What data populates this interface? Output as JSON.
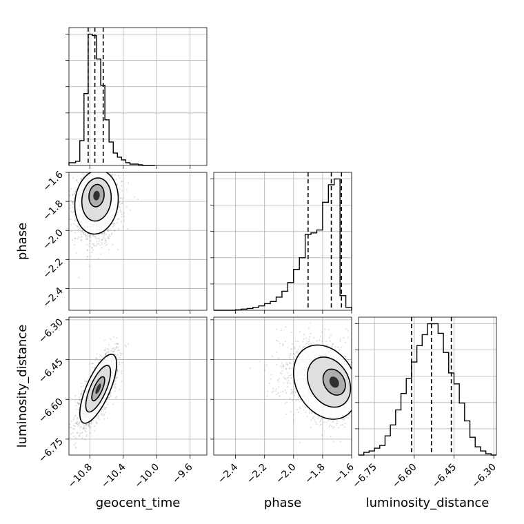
{
  "chart_data": {
    "type": "corner",
    "parameters": [
      "geocent_time",
      "phase",
      "luminosity_distance"
    ],
    "grid": true,
    "axes": {
      "geocent_time": {
        "range": [
          -11.05,
          -9.4
        ],
        "ticks": [
          -10.8,
          -10.4,
          -10.0,
          -9.6
        ],
        "tick_labels": [
          "−10.8",
          "−10.4",
          "−10.0",
          "−9.6"
        ],
        "label": "geocent_time"
      },
      "phase": {
        "range": [
          -2.55,
          -1.6
        ],
        "ticks": [
          -2.4,
          -2.2,
          -2.0,
          -1.8,
          -1.6
        ],
        "tick_labels": [
          "−2.4",
          "−2.2",
          "−2.0",
          "−1.8",
          "−1.6"
        ],
        "label": "phase"
      },
      "luminosity_distance": {
        "range": [
          -6.81,
          -6.29
        ],
        "ticks": [
          -6.75,
          -6.6,
          -6.45,
          -6.3
        ],
        "tick_labels": [
          "−6.75",
          "−6.60",
          "−6.45",
          "−6.30"
        ],
        "label": "luminosity_distance"
      }
    },
    "histograms": [
      {
        "parameter": "geocent_time",
        "bin_edges": [
          -11.05,
          -10.97,
          -10.92,
          -10.87,
          -10.82,
          -10.77,
          -10.72,
          -10.67,
          -10.62,
          -10.57,
          -10.52,
          -10.47,
          -10.42,
          -10.37,
          -10.32,
          -10.27,
          -10.22,
          -10.17,
          -10.12,
          -10.07,
          -10.02
        ],
        "counts": [
          0.02,
          0.03,
          0.18,
          0.52,
          0.95,
          0.94,
          0.77,
          0.58,
          0.33,
          0.17,
          0.09,
          0.06,
          0.04,
          0.02,
          0.01,
          0.01,
          0.005,
          0.0,
          0.0,
          0.0
        ],
        "quantiles": [
          -10.82,
          -10.74,
          -10.64
        ]
      },
      {
        "parameter": "phase",
        "bin_edges": [
          -2.55,
          -2.4,
          -2.36,
          -2.32,
          -2.28,
          -2.24,
          -2.2,
          -2.16,
          -2.12,
          -2.08,
          -2.04,
          -2.0,
          -1.96,
          -1.92,
          -1.88,
          -1.84,
          -1.8,
          -1.76,
          -1.72,
          -1.68,
          -1.64,
          -1.6
        ],
        "counts": [
          0.0,
          0.003,
          0.008,
          0.012,
          0.02,
          0.03,
          0.045,
          0.06,
          0.09,
          0.13,
          0.19,
          0.28,
          0.36,
          0.52,
          0.53,
          0.55,
          0.74,
          0.86,
          0.9,
          0.1,
          0.02
        ],
        "quantiles": [
          -1.9,
          -1.74,
          -1.67
        ]
      },
      {
        "parameter": "luminosity_distance",
        "bin_edges": [
          -6.81,
          -6.79,
          -6.77,
          -6.75,
          -6.73,
          -6.71,
          -6.69,
          -6.67,
          -6.65,
          -6.63,
          -6.61,
          -6.59,
          -6.57,
          -6.55,
          -6.53,
          -6.51,
          -6.49,
          -6.47,
          -6.45,
          -6.43,
          -6.41,
          -6.39,
          -6.37,
          -6.35,
          -6.33,
          -6.31,
          -6.29
        ],
        "counts": [
          0.0,
          0.02,
          0.03,
          0.05,
          0.07,
          0.14,
          0.22,
          0.33,
          0.45,
          0.56,
          0.68,
          0.8,
          0.88,
          0.96,
          0.96,
          0.89,
          0.75,
          0.6,
          0.52,
          0.38,
          0.25,
          0.13,
          0.06,
          0.03,
          0.01,
          0.0
        ],
        "quantiles": [
          -6.61,
          -6.535,
          -6.46
        ]
      }
    ],
    "joint_distributions": [
      {
        "x": "geocent_time",
        "y": "phase",
        "mean": [
          -10.72,
          -1.76
        ],
        "sd": [
          0.13,
          0.11
        ],
        "rho": 0.1,
        "skew_y": -0.09
      },
      {
        "x": "geocent_time",
        "y": "luminosity_distance",
        "mean": [
          -10.7,
          -6.56
        ],
        "sd": [
          0.11,
          0.065
        ],
        "rho": 0.72,
        "skew_y": 0.0
      },
      {
        "x": "phase",
        "y": "luminosity_distance",
        "mean": [
          -1.72,
          -6.535
        ],
        "sd": [
          0.11,
          0.07
        ],
        "rho": -0.25,
        "skew_x": -0.12
      }
    ]
  }
}
